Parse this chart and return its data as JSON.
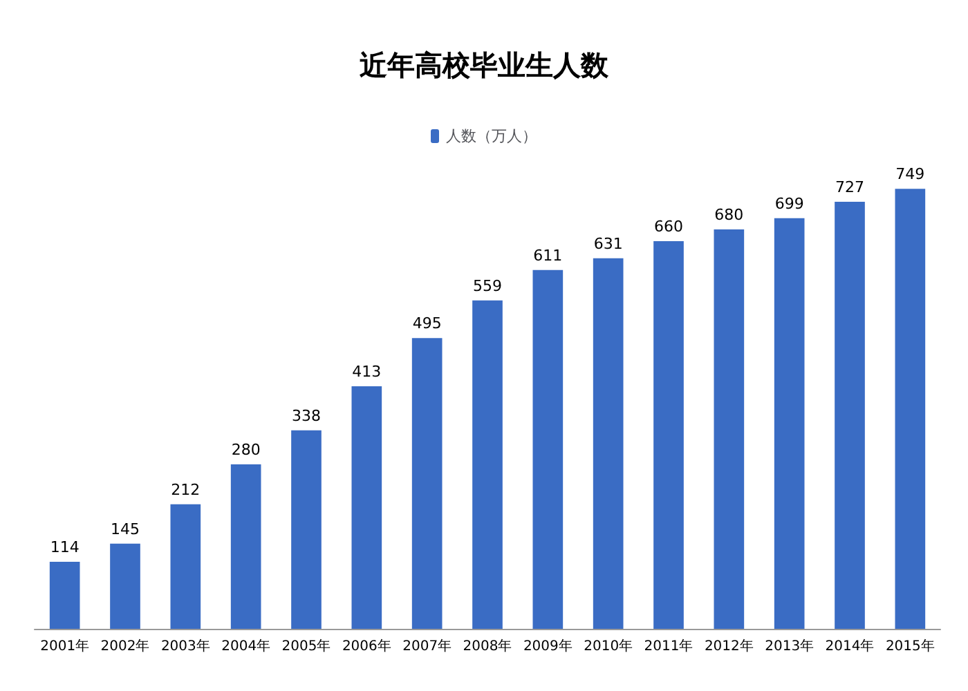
{
  "chart_data": {
    "type": "bar",
    "title": "近年高校毕业生人数",
    "categories": [
      "2001年",
      "2002年",
      "2003年",
      "2004年",
      "2005年",
      "2006年",
      "2007年",
      "2008年",
      "2009年",
      "2010年",
      "2011年",
      "2012年",
      "2013年",
      "2014年",
      "2015年"
    ],
    "series": [
      {
        "name": "人数（万人）",
        "color": "#3a6cc4",
        "values": [
          114,
          145,
          212,
          280,
          338,
          413,
          495,
          559,
          611,
          631,
          660,
          680,
          699,
          727,
          749
        ]
      }
    ],
    "data_labels": true,
    "legend": "top"
  }
}
